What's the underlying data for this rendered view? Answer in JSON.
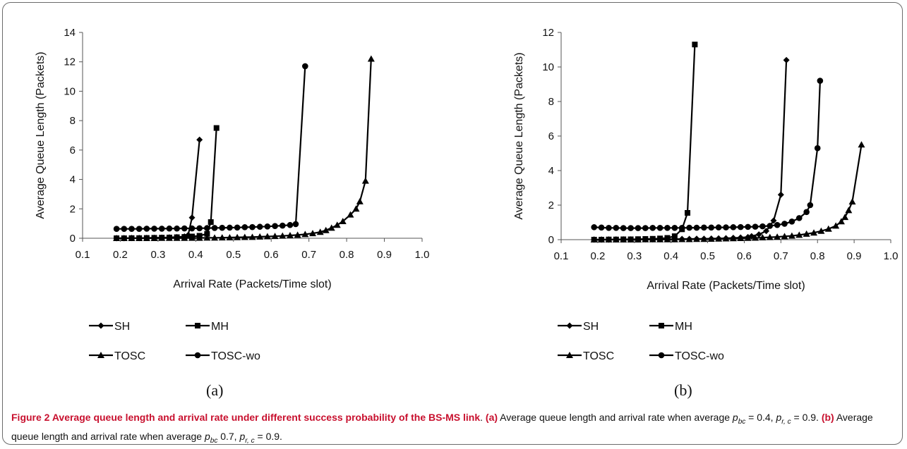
{
  "caption": {
    "title": "Figure 2 Average queue length and arrival rate under different success probability of the BS-MS link",
    "a_label": "(a)",
    "a_text_1": "Average queue length and arrival rate when average",
    "a_text_2": "= 0.4,",
    "a_text_3": "= 0.9.",
    "b_label": "(b)",
    "b_text_1": "Average queue length and arrival rate when average",
    "b_text_2": "0.7,",
    "b_text_3": "= 0.9.",
    "p_symbol": "p",
    "sub_bc": "bc",
    "sub_rc": "r, c"
  },
  "chart_data": [
    {
      "type": "line",
      "panel_label": "(a)",
      "xlabel": "Arrival Rate (Packets/Time slot)",
      "ylabel": "Average Queue Length (Packets)",
      "xlim": [
        0.1,
        1.0
      ],
      "ylim": [
        0,
        14
      ],
      "xticks": [
        "0.1",
        "0.2",
        "0.3",
        "0.4",
        "0.5",
        "0.6",
        "0.7",
        "0.8",
        "0.9",
        "1.0"
      ],
      "yticks": [
        "0",
        "2",
        "4",
        "6",
        "8",
        "10",
        "12",
        "14"
      ],
      "grid": false,
      "legend_position": "bottom",
      "series": [
        {
          "name": "SH",
          "marker": "diamond",
          "points": [
            [
              0.19,
              0.0
            ],
            [
              0.21,
              0.0
            ],
            [
              0.23,
              0.01
            ],
            [
              0.25,
              0.01
            ],
            [
              0.27,
              0.02
            ],
            [
              0.29,
              0.03
            ],
            [
              0.31,
              0.04
            ],
            [
              0.33,
              0.06
            ],
            [
              0.35,
              0.08
            ],
            [
              0.37,
              0.12
            ],
            [
              0.38,
              0.22
            ],
            [
              0.39,
              1.4
            ],
            [
              0.41,
              6.7
            ]
          ]
        },
        {
          "name": "MH",
          "marker": "square",
          "points": [
            [
              0.19,
              0.0
            ],
            [
              0.21,
              0.0
            ],
            [
              0.23,
              0.01
            ],
            [
              0.25,
              0.01
            ],
            [
              0.27,
              0.02
            ],
            [
              0.29,
              0.03
            ],
            [
              0.31,
              0.04
            ],
            [
              0.33,
              0.05
            ],
            [
              0.35,
              0.07
            ],
            [
              0.37,
              0.09
            ],
            [
              0.39,
              0.12
            ],
            [
              0.41,
              0.17
            ],
            [
              0.43,
              0.3
            ],
            [
              0.44,
              1.1
            ],
            [
              0.455,
              7.5
            ]
          ]
        },
        {
          "name": "TOSC",
          "marker": "triangle",
          "points": [
            [
              0.19,
              0.0
            ],
            [
              0.21,
              0.0
            ],
            [
              0.23,
              0.0
            ],
            [
              0.25,
              0.0
            ],
            [
              0.27,
              0.0
            ],
            [
              0.29,
              0.0
            ],
            [
              0.31,
              0.01
            ],
            [
              0.33,
              0.01
            ],
            [
              0.35,
              0.01
            ],
            [
              0.37,
              0.01
            ],
            [
              0.39,
              0.02
            ],
            [
              0.41,
              0.02
            ],
            [
              0.43,
              0.03
            ],
            [
              0.45,
              0.03
            ],
            [
              0.47,
              0.04
            ],
            [
              0.49,
              0.05
            ],
            [
              0.51,
              0.06
            ],
            [
              0.53,
              0.07
            ],
            [
              0.55,
              0.08
            ],
            [
              0.57,
              0.1
            ],
            [
              0.59,
              0.12
            ],
            [
              0.61,
              0.14
            ],
            [
              0.63,
              0.16
            ],
            [
              0.65,
              0.19
            ],
            [
              0.67,
              0.22
            ],
            [
              0.69,
              0.27
            ],
            [
              0.71,
              0.33
            ],
            [
              0.73,
              0.42
            ],
            [
              0.745,
              0.54
            ],
            [
              0.76,
              0.7
            ],
            [
              0.775,
              0.9
            ],
            [
              0.79,
              1.15
            ],
            [
              0.81,
              1.6
            ],
            [
              0.825,
              2.0
            ],
            [
              0.835,
              2.5
            ],
            [
              0.85,
              3.9
            ],
            [
              0.865,
              12.2
            ]
          ]
        },
        {
          "name": "TOSC-wo",
          "marker": "circle",
          "points": [
            [
              0.19,
              0.64
            ],
            [
              0.21,
              0.64
            ],
            [
              0.23,
              0.64
            ],
            [
              0.25,
              0.64
            ],
            [
              0.27,
              0.65
            ],
            [
              0.29,
              0.65
            ],
            [
              0.31,
              0.65
            ],
            [
              0.33,
              0.66
            ],
            [
              0.35,
              0.66
            ],
            [
              0.37,
              0.67
            ],
            [
              0.39,
              0.67
            ],
            [
              0.41,
              0.68
            ],
            [
              0.43,
              0.69
            ],
            [
              0.45,
              0.7
            ],
            [
              0.47,
              0.71
            ],
            [
              0.49,
              0.72
            ],
            [
              0.51,
              0.73
            ],
            [
              0.53,
              0.75
            ],
            [
              0.55,
              0.76
            ],
            [
              0.57,
              0.78
            ],
            [
              0.59,
              0.8
            ],
            [
              0.61,
              0.83
            ],
            [
              0.63,
              0.86
            ],
            [
              0.65,
              0.9
            ],
            [
              0.665,
              0.96
            ],
            [
              0.69,
              11.7
            ]
          ]
        }
      ]
    },
    {
      "type": "line",
      "panel_label": "(b)",
      "xlabel": "Arrival Rate (Packets/Time slot)",
      "ylabel": "Average Queue Length (Packets)",
      "xlim": [
        0.1,
        1.0
      ],
      "ylim": [
        0,
        12
      ],
      "xticks": [
        "0.1",
        "0.2",
        "0.3",
        "0.4",
        "0.5",
        "0.6",
        "0.7",
        "0.8",
        "0.9",
        "1.0"
      ],
      "yticks": [
        "0",
        "2",
        "4",
        "6",
        "8",
        "10",
        "12"
      ],
      "grid": false,
      "legend_position": "bottom",
      "series": [
        {
          "name": "SH",
          "marker": "diamond",
          "points": [
            [
              0.19,
              0.0
            ],
            [
              0.21,
              0.0
            ],
            [
              0.23,
              0.0
            ],
            [
              0.25,
              0.01
            ],
            [
              0.27,
              0.01
            ],
            [
              0.29,
              0.01
            ],
            [
              0.31,
              0.01
            ],
            [
              0.33,
              0.02
            ],
            [
              0.35,
              0.02
            ],
            [
              0.37,
              0.02
            ],
            [
              0.39,
              0.03
            ],
            [
              0.41,
              0.03
            ],
            [
              0.43,
              0.04
            ],
            [
              0.45,
              0.04
            ],
            [
              0.47,
              0.05
            ],
            [
              0.49,
              0.05
            ],
            [
              0.51,
              0.06
            ],
            [
              0.53,
              0.07
            ],
            [
              0.55,
              0.08
            ],
            [
              0.57,
              0.1
            ],
            [
              0.59,
              0.12
            ],
            [
              0.61,
              0.15
            ],
            [
              0.62,
              0.2
            ],
            [
              0.64,
              0.3
            ],
            [
              0.66,
              0.5
            ],
            [
              0.68,
              1.1
            ],
            [
              0.7,
              2.6
            ],
            [
              0.715,
              10.4
            ]
          ]
        },
        {
          "name": "MH",
          "marker": "square",
          "points": [
            [
              0.19,
              0.0
            ],
            [
              0.21,
              0.0
            ],
            [
              0.23,
              0.01
            ],
            [
              0.25,
              0.01
            ],
            [
              0.27,
              0.02
            ],
            [
              0.29,
              0.02
            ],
            [
              0.31,
              0.03
            ],
            [
              0.33,
              0.04
            ],
            [
              0.35,
              0.05
            ],
            [
              0.37,
              0.07
            ],
            [
              0.39,
              0.1
            ],
            [
              0.41,
              0.2
            ],
            [
              0.43,
              0.6
            ],
            [
              0.445,
              1.55
            ],
            [
              0.465,
              11.3
            ]
          ]
        },
        {
          "name": "TOSC",
          "marker": "triangle",
          "points": [
            [
              0.19,
              0.0
            ],
            [
              0.21,
              0.0
            ],
            [
              0.23,
              0.0
            ],
            [
              0.25,
              0.0
            ],
            [
              0.27,
              0.0
            ],
            [
              0.29,
              0.0
            ],
            [
              0.31,
              0.0
            ],
            [
              0.33,
              0.01
            ],
            [
              0.35,
              0.01
            ],
            [
              0.37,
              0.01
            ],
            [
              0.39,
              0.01
            ],
            [
              0.41,
              0.01
            ],
            [
              0.43,
              0.02
            ],
            [
              0.45,
              0.02
            ],
            [
              0.47,
              0.03
            ],
            [
              0.49,
              0.03
            ],
            [
              0.51,
              0.04
            ],
            [
              0.53,
              0.05
            ],
            [
              0.55,
              0.06
            ],
            [
              0.57,
              0.07
            ],
            [
              0.59,
              0.08
            ],
            [
              0.61,
              0.09
            ],
            [
              0.63,
              0.1
            ],
            [
              0.65,
              0.12
            ],
            [
              0.67,
              0.14
            ],
            [
              0.69,
              0.16
            ],
            [
              0.71,
              0.19
            ],
            [
              0.73,
              0.22
            ],
            [
              0.75,
              0.27
            ],
            [
              0.77,
              0.33
            ],
            [
              0.79,
              0.4
            ],
            [
              0.81,
              0.5
            ],
            [
              0.83,
              0.62
            ],
            [
              0.85,
              0.8
            ],
            [
              0.865,
              1.05
            ],
            [
              0.875,
              1.3
            ],
            [
              0.885,
              1.7
            ],
            [
              0.895,
              2.2
            ],
            [
              0.92,
              5.5
            ]
          ]
        },
        {
          "name": "TOSC-wo",
          "marker": "circle",
          "points": [
            [
              0.19,
              0.72
            ],
            [
              0.21,
              0.7
            ],
            [
              0.23,
              0.68
            ],
            [
              0.25,
              0.68
            ],
            [
              0.27,
              0.67
            ],
            [
              0.29,
              0.67
            ],
            [
              0.31,
              0.67
            ],
            [
              0.33,
              0.67
            ],
            [
              0.35,
              0.68
            ],
            [
              0.37,
              0.68
            ],
            [
              0.39,
              0.68
            ],
            [
              0.41,
              0.68
            ],
            [
              0.43,
              0.68
            ],
            [
              0.45,
              0.69
            ],
            [
              0.47,
              0.69
            ],
            [
              0.49,
              0.7
            ],
            [
              0.51,
              0.7
            ],
            [
              0.53,
              0.71
            ],
            [
              0.55,
              0.71
            ],
            [
              0.57,
              0.72
            ],
            [
              0.59,
              0.73
            ],
            [
              0.61,
              0.74
            ],
            [
              0.63,
              0.75
            ],
            [
              0.65,
              0.77
            ],
            [
              0.67,
              0.8
            ],
            [
              0.69,
              0.85
            ],
            [
              0.71,
              0.92
            ],
            [
              0.73,
              1.05
            ],
            [
              0.75,
              1.25
            ],
            [
              0.77,
              1.6
            ],
            [
              0.78,
              2.0
            ],
            [
              0.8,
              5.3
            ],
            [
              0.807,
              9.2
            ]
          ]
        }
      ]
    }
  ]
}
